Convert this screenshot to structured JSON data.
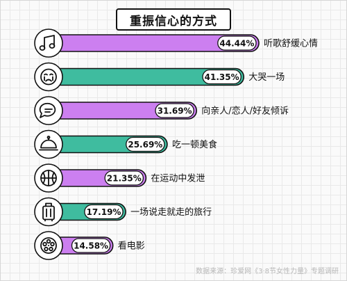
{
  "title": "重振信心的方式",
  "source": "数据来源：珍爱网《3·8节女性力量》专题调研",
  "colors": {
    "odd_bar": "#cc7ff0",
    "even_bar": "#3fbc9f",
    "outline": "#111111",
    "badge_bg": "#ffffff"
  },
  "chart_data": {
    "type": "bar",
    "orientation": "horizontal",
    "xlim": [
      0,
      50
    ],
    "categories": [
      "听歌舒缓心情",
      "大哭一场",
      "向亲人/恋人/好友倾诉",
      "吃一顿美食",
      "在运动中发泄",
      "一场说走就走的旅行",
      "看电影"
    ],
    "values": [
      44.44,
      41.35,
      31.69,
      25.69,
      21.35,
      17.19,
      14.58
    ],
    "value_labels": [
      "44.44%",
      "41.35%",
      "31.69%",
      "25.69%",
      "21.35%",
      "17.19%",
      "14.58%"
    ],
    "icons": [
      "music-note-icon",
      "crying-face-icon",
      "chat-bubble-icon",
      "food-cloche-icon",
      "ball-icon",
      "suitcase-icon",
      "film-reel-icon"
    ]
  }
}
